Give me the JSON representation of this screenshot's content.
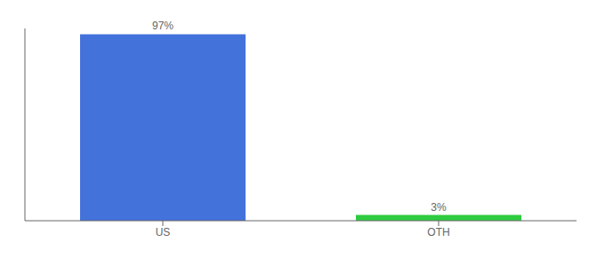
{
  "chart_data": {
    "type": "bar",
    "categories": [
      "US",
      "OTH"
    ],
    "values": [
      97,
      3
    ],
    "value_labels": [
      "97%",
      "3%"
    ],
    "colors": [
      "#4472db",
      "#2ecc40"
    ],
    "ylim": [
      0,
      100
    ],
    "tick_labels": "x",
    "data_labels": true,
    "grid": false
  }
}
